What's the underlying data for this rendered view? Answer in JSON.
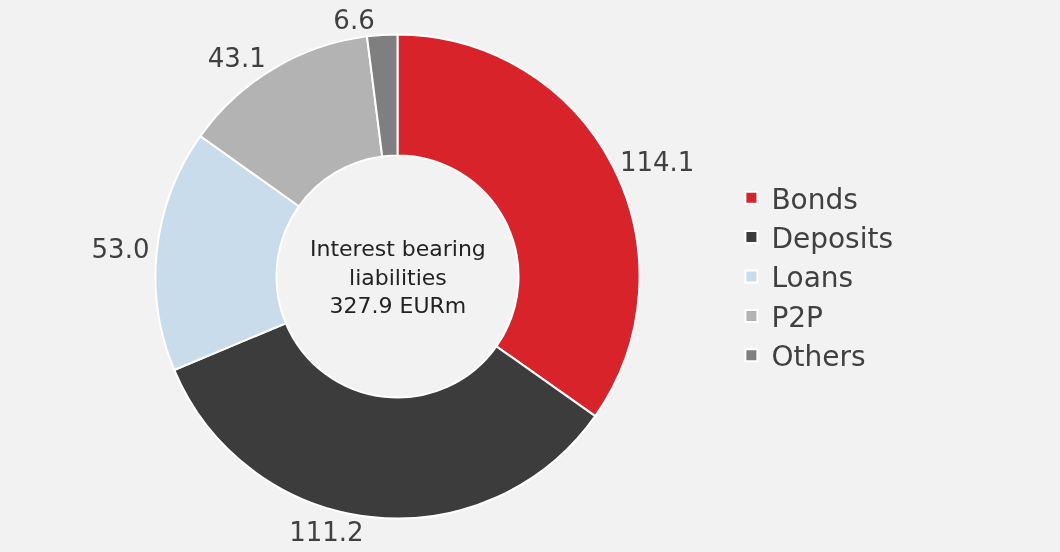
{
  "chart_data": {
    "type": "donut",
    "categories": [
      "Bonds",
      "Deposits",
      "Loans",
      "P2P",
      "Others"
    ],
    "values": [
      114.1,
      111.2,
      53.0,
      43.1,
      6.6
    ],
    "value_labels": [
      "114.1",
      "111.2",
      "53.0",
      "43.1",
      "6.6"
    ],
    "colors": [
      "#d9232b",
      "#3c3c3c",
      "#c9dcec",
      "#b3b3b3",
      "#7f7f7f"
    ],
    "annotations": [
      "Interest bearing\nliabilities\n327.9 EURm"
    ],
    "legend": "right"
  }
}
